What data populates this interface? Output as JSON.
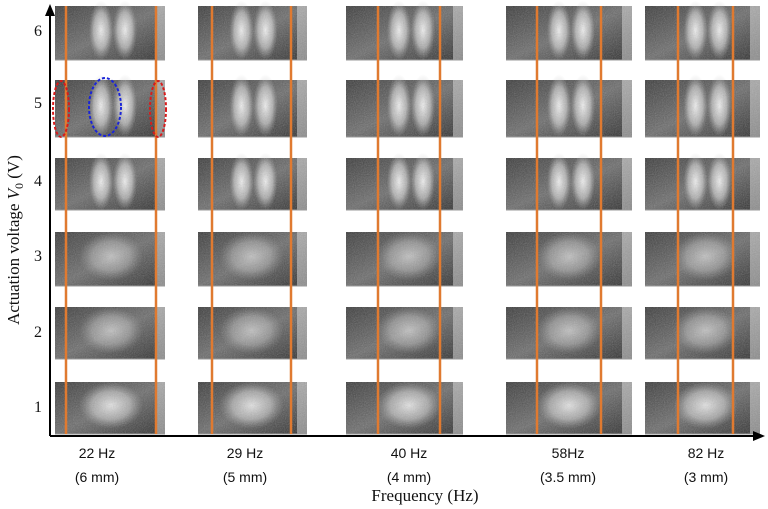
{
  "figure": {
    "y_axis": {
      "label_prefix": "Actuation voltage ",
      "label_var": "V",
      "label_sub": "0",
      "label_unit": " (V)",
      "ticks": [
        "6",
        "5",
        "4",
        "3",
        "2",
        "1"
      ]
    },
    "x_axis": {
      "label": "Frequency (Hz)",
      "columns": [
        {
          "freq": "22 Hz",
          "wavelength": "(6 mm)"
        },
        {
          "freq": "29 Hz",
          "wavelength": "(5 mm)"
        },
        {
          "freq": "40 Hz",
          "wavelength": "(4 mm)"
        },
        {
          "freq": "58Hz",
          "wavelength": "(3.5 mm)"
        },
        {
          "freq": "82 Hz",
          "wavelength": "(3 mm)"
        }
      ]
    },
    "colors": {
      "marker_line": "#e07a30",
      "node_highlight": "#d81b1b",
      "antinode_highlight": "#1a24d8",
      "axis": "#000000"
    },
    "panel_voltages": [
      "6",
      "5",
      "4",
      "3",
      "2",
      "1"
    ]
  }
}
